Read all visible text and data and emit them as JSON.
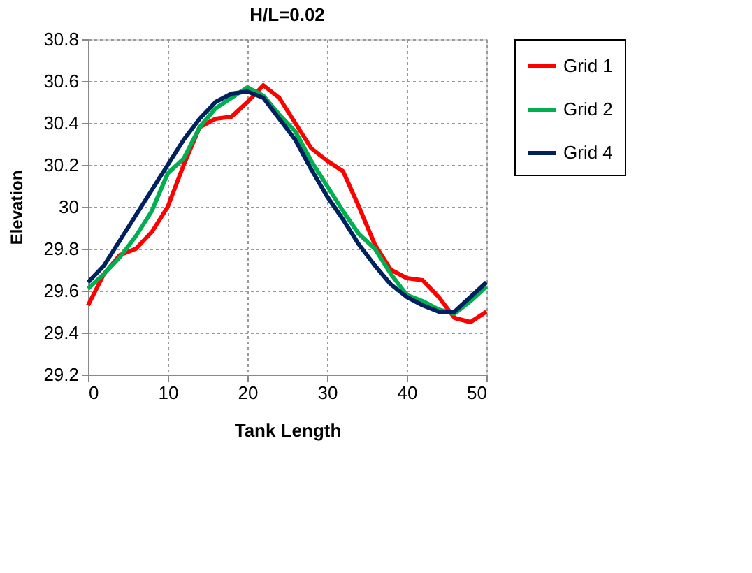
{
  "chart_data": {
    "type": "line",
    "title": "H/L=0.02",
    "xlabel": "Tank Length",
    "ylabel": "Elevation",
    "x": [
      0,
      2,
      4,
      6,
      8,
      10,
      12,
      14,
      16,
      18,
      20,
      22,
      24,
      26,
      28,
      30,
      32,
      34,
      36,
      38,
      40,
      42,
      44,
      46,
      48,
      50
    ],
    "series": [
      {
        "name": "Grid 1",
        "color": "#ff0000",
        "values": [
          29.53,
          29.68,
          29.77,
          29.8,
          29.88,
          30.0,
          30.2,
          30.38,
          30.42,
          30.43,
          30.5,
          30.58,
          30.52,
          30.4,
          30.28,
          30.22,
          30.17,
          30.0,
          29.82,
          29.7,
          29.66,
          29.65,
          29.57,
          29.47,
          29.45,
          29.5
        ]
      },
      {
        "name": "Grid 2",
        "color": "#00b050",
        "values": [
          29.61,
          29.68,
          29.76,
          29.86,
          29.98,
          30.16,
          30.23,
          30.38,
          30.47,
          30.52,
          30.57,
          30.53,
          30.44,
          30.36,
          30.22,
          30.1,
          29.98,
          29.87,
          29.8,
          29.68,
          29.58,
          29.55,
          29.51,
          29.49,
          29.55,
          29.62
        ]
      },
      {
        "name": "Grid 4",
        "color": "#002060",
        "values": [
          29.64,
          29.72,
          29.84,
          29.96,
          30.08,
          30.2,
          30.32,
          30.42,
          30.5,
          30.54,
          30.55,
          30.52,
          30.42,
          30.32,
          30.18,
          30.05,
          29.94,
          29.82,
          29.72,
          29.63,
          29.57,
          29.53,
          29.5,
          29.5,
          29.57,
          29.64
        ]
      }
    ],
    "xlim": [
      0,
      50
    ],
    "xticks": [
      0,
      10,
      20,
      30,
      40,
      50
    ],
    "ylim": [
      29.2,
      30.8
    ],
    "yticks": [
      29.2,
      29.4,
      29.6,
      29.8,
      30,
      30.2,
      30.4,
      30.6,
      30.8
    ],
    "grid": true,
    "legend": "right",
    "marker": "none",
    "line_style": "solid"
  }
}
